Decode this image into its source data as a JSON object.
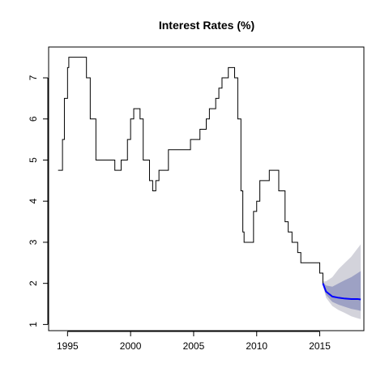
{
  "chart_data": {
    "type": "line",
    "title": "Interest Rates (%)",
    "xlabel": "",
    "ylabel": "",
    "xlim": [
      1993.5,
      2018.5
    ],
    "ylim": [
      0.85,
      7.75
    ],
    "x_ticks": [
      1995,
      2000,
      2005,
      2010,
      2015
    ],
    "y_ticks": [
      1,
      2,
      3,
      4,
      5,
      6,
      7
    ],
    "grid": false,
    "legend": "none",
    "colors": {
      "history_line": "#000000",
      "forecast_line": "#0000ff",
      "outer_band": "#d3d3db",
      "inner_band": "#9da1c4"
    },
    "series": [
      {
        "kind": "history-step",
        "points": [
          [
            1994.25,
            4.75
          ],
          [
            1994.5,
            4.75
          ],
          [
            1994.6,
            5.5
          ],
          [
            1994.75,
            6.5
          ],
          [
            1995.0,
            7.25
          ],
          [
            1995.1,
            7.5
          ],
          [
            1996.5,
            7.0
          ],
          [
            1996.8,
            6.0
          ],
          [
            1997.25,
            5.0
          ],
          [
            1998.75,
            4.75
          ],
          [
            1999.25,
            5.0
          ],
          [
            1999.75,
            5.5
          ],
          [
            2000.0,
            6.0
          ],
          [
            2000.25,
            6.25
          ],
          [
            2000.75,
            6.0
          ],
          [
            2001.0,
            5.0
          ],
          [
            2001.5,
            4.5
          ],
          [
            2001.75,
            4.25
          ],
          [
            2002.0,
            4.5
          ],
          [
            2002.25,
            4.75
          ],
          [
            2003.0,
            5.25
          ],
          [
            2004.0,
            5.25
          ],
          [
            2004.75,
            5.5
          ],
          [
            2005.5,
            5.75
          ],
          [
            2006.0,
            6.0
          ],
          [
            2006.25,
            6.25
          ],
          [
            2006.75,
            6.5
          ],
          [
            2007.0,
            6.75
          ],
          [
            2007.25,
            7.0
          ],
          [
            2007.75,
            7.25
          ],
          [
            2008.25,
            7.0
          ],
          [
            2008.5,
            6.0
          ],
          [
            2008.75,
            4.25
          ],
          [
            2008.9,
            3.25
          ],
          [
            2009.0,
            3.0
          ],
          [
            2009.75,
            3.75
          ],
          [
            2010.0,
            4.0
          ],
          [
            2010.25,
            4.5
          ],
          [
            2011.0,
            4.75
          ],
          [
            2011.75,
            4.25
          ],
          [
            2012.25,
            3.5
          ],
          [
            2012.5,
            3.25
          ],
          [
            2012.8,
            3.0
          ],
          [
            2013.25,
            2.75
          ],
          [
            2013.5,
            2.5
          ],
          [
            2015.0,
            2.25
          ],
          [
            2015.25,
            2.0
          ]
        ],
        "end_x": 2015.25
      },
      {
        "kind": "forecast-mean",
        "x": [
          2015.25,
          2015.5,
          2016.0,
          2016.5,
          2017.0,
          2017.5,
          2018.0,
          2018.25
        ],
        "y": [
          2.0,
          1.8,
          1.68,
          1.65,
          1.63,
          1.62,
          1.62,
          1.61
        ]
      },
      {
        "kind": "band-95",
        "x": [
          2015.25,
          2015.5,
          2016.0,
          2016.5,
          2017.0,
          2017.5,
          2018.0,
          2018.25
        ],
        "lo": [
          1.95,
          1.65,
          1.45,
          1.35,
          1.28,
          1.2,
          1.15,
          1.13
        ],
        "hi": [
          2.05,
          2.05,
          2.15,
          2.35,
          2.5,
          2.65,
          2.85,
          2.95
        ]
      },
      {
        "kind": "band-80",
        "x": [
          2015.25,
          2015.5,
          2016.0,
          2016.5,
          2017.0,
          2017.5,
          2018.0,
          2018.25
        ],
        "lo": [
          1.97,
          1.72,
          1.55,
          1.48,
          1.43,
          1.38,
          1.35,
          1.33
        ],
        "hi": [
          2.03,
          1.95,
          1.92,
          2.0,
          2.08,
          2.15,
          2.25,
          2.3
        ]
      }
    ]
  }
}
